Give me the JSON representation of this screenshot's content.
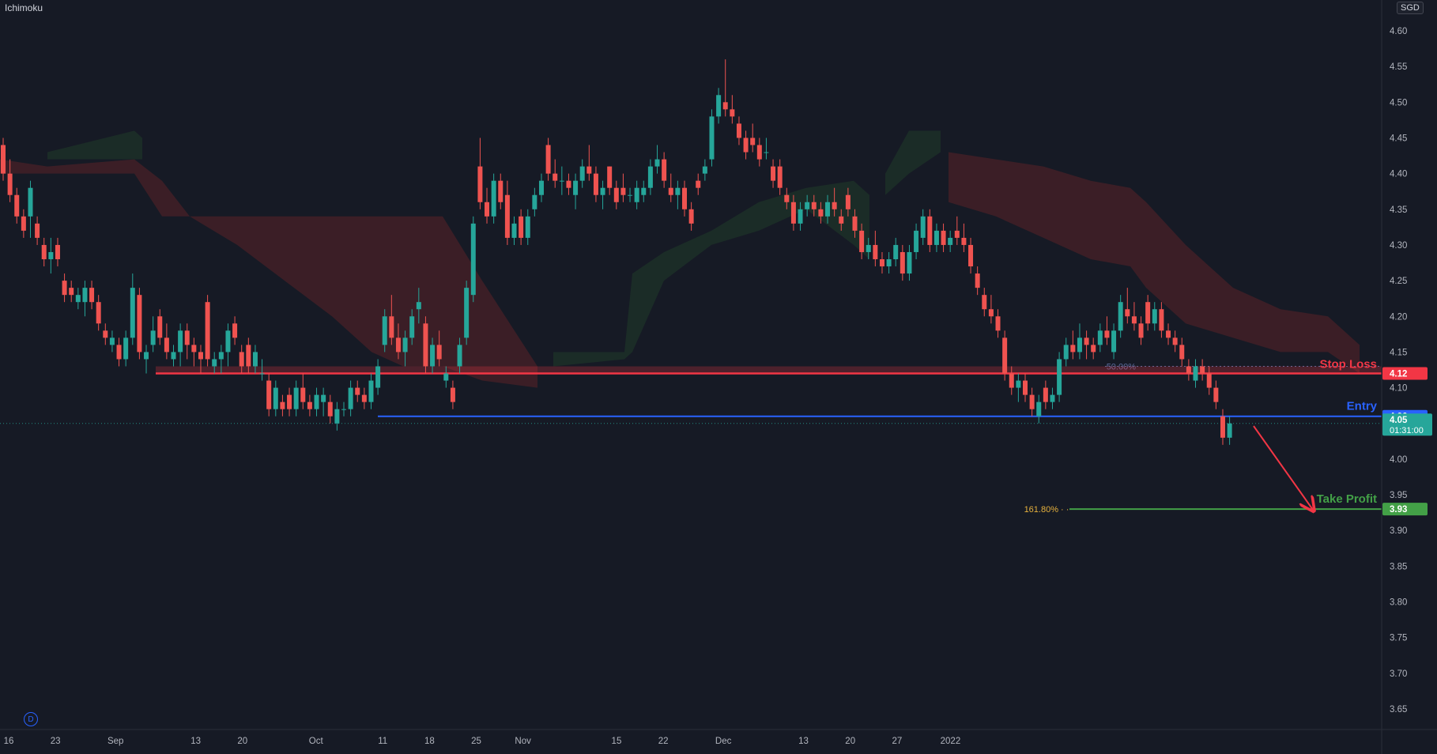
{
  "indicator": {
    "label": "Ichimoku"
  },
  "currency": {
    "label": "SGD"
  },
  "interval_badge": {
    "label": "D"
  },
  "colors": {
    "background": "#161a25",
    "bull": "#26a69a",
    "bear": "#ef5350",
    "stop_loss": "#f23645",
    "entry": "#2962ff",
    "take_profit": "#43a047",
    "cloud_bear": "#3d1f26",
    "cloud_bull": "#1b2d27",
    "fib_50": "#5b6b9c",
    "fib_161": "#e6b13d"
  },
  "chart_data": {
    "type": "candlestick",
    "ylim": [
      3.62,
      4.63
    ],
    "y_ticks": [
      "4.60",
      "4.55",
      "4.50",
      "4.45",
      "4.40",
      "4.35",
      "4.30",
      "4.25",
      "4.20",
      "4.15",
      "4.10",
      "4.05",
      "4.00",
      "3.95",
      "3.90",
      "3.85",
      "3.80",
      "3.75",
      "3.70",
      "3.65"
    ],
    "x_tick_labels": [
      "16",
      "23",
      "Sep",
      "13",
      "20",
      "Oct",
      "11",
      "18",
      "25",
      "Nov",
      "15",
      "22",
      "Dec",
      "13",
      "20",
      "27",
      "2022"
    ],
    "x_tick_days": [
      -15,
      -8,
      1,
      13,
      20,
      31,
      41,
      48,
      55,
      62,
      76,
      83,
      92,
      104,
      111,
      118,
      126
    ],
    "levels": [
      {
        "name": "Stop Loss",
        "value": 4.12,
        "badge": "4.12",
        "color": "#f23645"
      },
      {
        "name": "Entry",
        "value": 4.06,
        "badge": "4.06",
        "color": "#2962ff"
      },
      {
        "name": "Take Profit",
        "value": 3.93,
        "badge": "3.93",
        "color": "#43a047"
      }
    ],
    "current_price": {
      "value": 4.05,
      "badge": "4.05",
      "countdown": "01:31:00"
    },
    "fib_levels": [
      {
        "label": "50.00%",
        "value": 4.13
      },
      {
        "label": "161.80%",
        "value": 3.93
      }
    ],
    "candles": [
      [
        4.44,
        4.45,
        4.39,
        4.4
      ],
      [
        4.4,
        4.42,
        4.36,
        4.37
      ],
      [
        4.37,
        4.38,
        4.33,
        4.34
      ],
      [
        4.34,
        4.35,
        4.31,
        4.32
      ],
      [
        4.34,
        4.39,
        4.31,
        4.38
      ],
      [
        4.33,
        4.34,
        4.3,
        4.31
      ],
      [
        4.3,
        4.31,
        4.27,
        4.28
      ],
      [
        4.28,
        4.31,
        4.26,
        4.29
      ],
      [
        4.3,
        4.31,
        4.27,
        4.28
      ],
      [
        4.25,
        4.26,
        4.22,
        4.23
      ],
      [
        4.24,
        4.25,
        4.22,
        4.23
      ],
      [
        4.22,
        4.24,
        4.21,
        4.23
      ],
      [
        4.22,
        4.25,
        4.2,
        4.24
      ],
      [
        4.24,
        4.25,
        4.21,
        4.22
      ],
      [
        4.22,
        4.23,
        4.18,
        4.19
      ],
      [
        4.18,
        4.19,
        4.16,
        4.17
      ],
      [
        4.16,
        4.18,
        4.15,
        4.17
      ],
      [
        4.16,
        4.17,
        4.13,
        4.14
      ],
      [
        4.14,
        4.18,
        4.13,
        4.17
      ],
      [
        4.17,
        4.26,
        4.16,
        4.24
      ],
      [
        4.23,
        4.24,
        4.14,
        4.15
      ],
      [
        4.14,
        4.16,
        4.12,
        4.15
      ],
      [
        4.16,
        4.2,
        4.15,
        4.18
      ],
      [
        4.2,
        4.21,
        4.16,
        4.17
      ],
      [
        4.17,
        4.19,
        4.14,
        4.15
      ],
      [
        4.14,
        4.16,
        4.13,
        4.15
      ],
      [
        4.15,
        4.19,
        4.13,
        4.18
      ],
      [
        4.18,
        4.19,
        4.14,
        4.16
      ],
      [
        4.16,
        4.17,
        4.13,
        4.15
      ],
      [
        4.15,
        4.16,
        4.12,
        4.14
      ],
      [
        4.22,
        4.23,
        4.13,
        4.14
      ],
      [
        4.13,
        4.15,
        4.12,
        4.14
      ],
      [
        4.14,
        4.16,
        4.12,
        4.15
      ],
      [
        4.15,
        4.19,
        4.13,
        4.18
      ],
      [
        4.19,
        4.2,
        4.16,
        4.17
      ],
      [
        4.15,
        4.16,
        4.12,
        4.13
      ],
      [
        4.16,
        4.17,
        4.12,
        4.13
      ],
      [
        4.13,
        4.16,
        4.12,
        4.15
      ],
      [
        4.12,
        4.14,
        4.11,
        4.12
      ],
      [
        4.11,
        4.12,
        4.06,
        4.07
      ],
      [
        4.07,
        4.11,
        4.06,
        4.1
      ],
      [
        4.08,
        4.09,
        4.06,
        4.07
      ],
      [
        4.09,
        4.1,
        4.06,
        4.07
      ],
      [
        4.07,
        4.11,
        4.06,
        4.1
      ],
      [
        4.1,
        4.12,
        4.07,
        4.08
      ],
      [
        4.08,
        4.09,
        4.06,
        4.07
      ],
      [
        4.07,
        4.1,
        4.06,
        4.09
      ],
      [
        4.08,
        4.1,
        4.06,
        4.09
      ],
      [
        4.08,
        4.09,
        4.05,
        4.06
      ],
      [
        4.05,
        4.08,
        4.04,
        4.07
      ],
      [
        4.07,
        4.08,
        4.06,
        4.07
      ],
      [
        4.07,
        4.11,
        4.06,
        4.1
      ],
      [
        4.1,
        4.11,
        4.08,
        4.09
      ],
      [
        4.09,
        4.1,
        4.07,
        4.08
      ],
      [
        4.08,
        4.12,
        4.07,
        4.11
      ],
      [
        4.1,
        4.14,
        4.09,
        4.13
      ],
      [
        4.16,
        4.21,
        4.15,
        4.2
      ],
      [
        4.2,
        4.23,
        4.16,
        4.17
      ],
      [
        4.17,
        4.19,
        4.14,
        4.15
      ],
      [
        4.15,
        4.18,
        4.13,
        4.17
      ],
      [
        4.17,
        4.21,
        4.16,
        4.2
      ],
      [
        4.21,
        4.24,
        4.19,
        4.22
      ],
      [
        4.19,
        4.2,
        4.12,
        4.13
      ],
      [
        4.13,
        4.17,
        4.12,
        4.16
      ],
      [
        4.16,
        4.18,
        4.13,
        4.14
      ],
      [
        4.11,
        4.13,
        4.1,
        4.12
      ],
      [
        4.1,
        4.11,
        4.07,
        4.08
      ],
      [
        4.13,
        4.17,
        4.12,
        4.16
      ],
      [
        4.17,
        4.25,
        4.16,
        4.24
      ],
      [
        4.23,
        4.34,
        4.22,
        4.33
      ],
      [
        4.41,
        4.45,
        4.35,
        4.36
      ],
      [
        4.36,
        4.38,
        4.33,
        4.34
      ],
      [
        4.34,
        4.4,
        4.33,
        4.39
      ],
      [
        4.39,
        4.4,
        4.35,
        4.36
      ],
      [
        4.37,
        4.39,
        4.3,
        4.31
      ],
      [
        4.31,
        4.34,
        4.3,
        4.33
      ],
      [
        4.34,
        4.35,
        4.3,
        4.31
      ],
      [
        4.31,
        4.35,
        4.3,
        4.34
      ],
      [
        4.35,
        4.38,
        4.34,
        4.37
      ],
      [
        4.37,
        4.4,
        4.36,
        4.39
      ],
      [
        4.44,
        4.45,
        4.39,
        4.4
      ],
      [
        4.4,
        4.42,
        4.38,
        4.39
      ],
      [
        4.39,
        4.41,
        4.37,
        4.39
      ],
      [
        4.39,
        4.4,
        4.37,
        4.38
      ],
      [
        4.37,
        4.4,
        4.35,
        4.39
      ],
      [
        4.39,
        4.42,
        4.38,
        4.41
      ],
      [
        4.41,
        4.44,
        4.39,
        4.4
      ],
      [
        4.4,
        4.41,
        4.36,
        4.37
      ],
      [
        4.37,
        4.39,
        4.35,
        4.38
      ],
      [
        4.41,
        4.41,
        4.37,
        4.38
      ],
      [
        4.38,
        4.39,
        4.35,
        4.36
      ],
      [
        4.38,
        4.4,
        4.36,
        4.37
      ],
      [
        4.37,
        4.38,
        4.36,
        4.37
      ],
      [
        4.36,
        4.39,
        4.35,
        4.38
      ],
      [
        4.37,
        4.39,
        4.36,
        4.38
      ],
      [
        4.38,
        4.42,
        4.37,
        4.41
      ],
      [
        4.41,
        4.44,
        4.4,
        4.42
      ],
      [
        4.42,
        4.43,
        4.38,
        4.39
      ],
      [
        4.38,
        4.4,
        4.36,
        4.37
      ],
      [
        4.37,
        4.39,
        4.35,
        4.38
      ],
      [
        4.38,
        4.39,
        4.34,
        4.35
      ],
      [
        4.35,
        4.36,
        4.32,
        4.33
      ],
      [
        4.39,
        4.4,
        4.37,
        4.38
      ],
      [
        4.4,
        4.42,
        4.39,
        4.41
      ],
      [
        4.42,
        4.49,
        4.41,
        4.48
      ],
      [
        4.48,
        4.52,
        4.47,
        4.51
      ],
      [
        4.5,
        4.56,
        4.48,
        4.49
      ],
      [
        4.49,
        4.51,
        4.47,
        4.48
      ],
      [
        4.47,
        4.48,
        4.44,
        4.45
      ],
      [
        4.45,
        4.46,
        4.42,
        4.43
      ],
      [
        4.45,
        4.47,
        4.43,
        4.44
      ],
      [
        4.44,
        4.45,
        4.41,
        4.42
      ],
      [
        4.43,
        4.45,
        4.42,
        4.43
      ],
      [
        4.41,
        4.42,
        4.38,
        4.39
      ],
      [
        4.41,
        4.42,
        4.37,
        4.38
      ],
      [
        4.37,
        4.38,
        4.35,
        4.36
      ],
      [
        4.36,
        4.37,
        4.32,
        4.33
      ],
      [
        4.33,
        4.36,
        4.32,
        4.35
      ],
      [
        4.35,
        4.37,
        4.34,
        4.36
      ],
      [
        4.36,
        4.37,
        4.34,
        4.35
      ],
      [
        4.35,
        4.36,
        4.33,
        4.34
      ],
      [
        4.34,
        4.37,
        4.33,
        4.36
      ],
      [
        4.36,
        4.38,
        4.34,
        4.35
      ],
      [
        4.34,
        4.35,
        4.32,
        4.33
      ],
      [
        4.37,
        4.38,
        4.34,
        4.35
      ],
      [
        4.34,
        4.35,
        4.31,
        4.32
      ],
      [
        4.32,
        4.33,
        4.28,
        4.29
      ],
      [
        4.29,
        4.31,
        4.28,
        4.3
      ],
      [
        4.3,
        4.32,
        4.27,
        4.28
      ],
      [
        4.28,
        4.29,
        4.26,
        4.27
      ],
      [
        4.27,
        4.29,
        4.26,
        4.28
      ],
      [
        4.28,
        4.31,
        4.27,
        4.3
      ],
      [
        4.29,
        4.3,
        4.25,
        4.26
      ],
      [
        4.26,
        4.3,
        4.25,
        4.29
      ],
      [
        4.29,
        4.33,
        4.28,
        4.32
      ],
      [
        4.31,
        4.35,
        4.3,
        4.34
      ],
      [
        4.34,
        4.35,
        4.29,
        4.3
      ],
      [
        4.3,
        4.33,
        4.29,
        4.32
      ],
      [
        4.32,
        4.33,
        4.29,
        4.3
      ],
      [
        4.3,
        4.32,
        4.29,
        4.31
      ],
      [
        4.32,
        4.34,
        4.3,
        4.31
      ],
      [
        4.31,
        4.33,
        4.29,
        4.3
      ],
      [
        4.3,
        4.31,
        4.26,
        4.27
      ],
      [
        4.26,
        4.27,
        4.23,
        4.24
      ],
      [
        4.23,
        4.24,
        4.2,
        4.21
      ],
      [
        4.21,
        4.23,
        4.19,
        4.2
      ],
      [
        4.2,
        4.21,
        4.17,
        4.18
      ],
      [
        4.17,
        4.18,
        4.11,
        4.12
      ],
      [
        4.12,
        4.13,
        4.09,
        4.1
      ],
      [
        4.1,
        4.12,
        4.08,
        4.11
      ],
      [
        4.11,
        4.12,
        4.08,
        4.09
      ],
      [
        4.09,
        4.1,
        4.06,
        4.07
      ],
      [
        4.06,
        4.09,
        4.05,
        4.08
      ],
      [
        4.1,
        4.11,
        4.07,
        4.08
      ],
      [
        4.08,
        4.1,
        4.07,
        4.09
      ],
      [
        4.09,
        4.15,
        4.08,
        4.14
      ],
      [
        4.14,
        4.17,
        4.13,
        4.16
      ],
      [
        4.16,
        4.18,
        4.14,
        4.15
      ],
      [
        4.15,
        4.19,
        4.14,
        4.17
      ],
      [
        4.17,
        4.18,
        4.14,
        4.16
      ],
      [
        4.16,
        4.17,
        4.14,
        4.15
      ],
      [
        4.16,
        4.19,
        4.15,
        4.18
      ],
      [
        4.18,
        4.2,
        4.16,
        4.17
      ],
      [
        4.15,
        4.19,
        4.14,
        4.18
      ],
      [
        4.18,
        4.23,
        4.17,
        4.22
      ],
      [
        4.21,
        4.24,
        4.19,
        4.2
      ],
      [
        4.2,
        4.22,
        4.18,
        4.19
      ],
      [
        4.19,
        4.2,
        4.16,
        4.17
      ],
      [
        4.22,
        4.23,
        4.18,
        4.19
      ],
      [
        4.19,
        4.22,
        4.18,
        4.21
      ],
      [
        4.21,
        4.22,
        4.17,
        4.18
      ],
      [
        4.18,
        4.19,
        4.16,
        4.17
      ],
      [
        4.17,
        4.18,
        4.15,
        4.16
      ],
      [
        4.16,
        4.17,
        4.13,
        4.14
      ],
      [
        4.13,
        4.14,
        4.11,
        4.12
      ],
      [
        4.11,
        4.14,
        4.1,
        4.13
      ],
      [
        4.13,
        4.14,
        4.11,
        4.12
      ],
      [
        4.12,
        4.13,
        4.09,
        4.1
      ],
      [
        4.1,
        4.11,
        4.07,
        4.08
      ],
      [
        4.06,
        4.07,
        4.02,
        4.03
      ],
      [
        4.03,
        4.06,
        4.02,
        4.05
      ]
    ]
  },
  "annotations": {
    "stop_loss": "Stop Loss",
    "entry": "Entry",
    "take_profit": "Take Profit"
  }
}
